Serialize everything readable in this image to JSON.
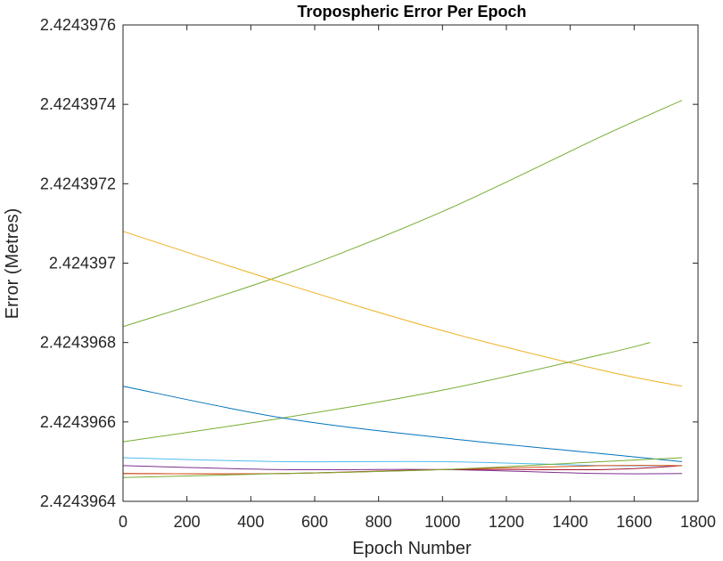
{
  "chart_data": {
    "type": "line",
    "title": "Tropospheric Error Per Epoch",
    "xlabel": "Epoch Number",
    "ylabel": "Error (Metres)",
    "xlim": [
      0,
      1800
    ],
    "ylim": [
      2.4243964,
      2.4243976
    ],
    "xticks": [
      0,
      200,
      400,
      600,
      800,
      1000,
      1200,
      1400,
      1600,
      1800
    ],
    "yticks": [
      2.4243964,
      2.4243966,
      2.4243968,
      2.424397,
      2.4243972,
      2.4243974,
      2.4243976
    ],
    "xtick_labels": [
      "0",
      "200",
      "400",
      "600",
      "800",
      "1000",
      "1200",
      "1400",
      "1600",
      "1800"
    ],
    "ytick_labels": [
      "2.4243964",
      "2.4243966",
      "2.4243968",
      "2.424397",
      "2.4243972",
      "2.4243974",
      "2.4243976"
    ],
    "grid": false,
    "series": [
      {
        "color": "#77ac30",
        "x": [
          0,
          500,
          1000,
          1500,
          1750
        ],
        "y": [
          2.42439684,
          2.42439697,
          2.42439713,
          2.42439732,
          2.42439741
        ]
      },
      {
        "color": "#edb120",
        "x": [
          0,
          500,
          1000,
          1500,
          1750
        ],
        "y": [
          2.42439708,
          2.42439695,
          2.42439683,
          2.42439673,
          2.42439669
        ]
      },
      {
        "color": "#77ac30",
        "x": [
          0,
          500,
          1000,
          1500,
          1650
        ],
        "y": [
          2.42439655,
          2.42439661,
          2.42439668,
          2.42439677,
          2.4243968
        ]
      },
      {
        "color": "#0072bd",
        "x": [
          0,
          500,
          1000,
          1500,
          1750
        ],
        "y": [
          2.42439669,
          2.42439661,
          2.42439656,
          2.42439652,
          2.4243965
        ]
      },
      {
        "color": "#4dbeee",
        "x": [
          0,
          500,
          1000,
          1500,
          1750
        ],
        "y": [
          2.42439651,
          2.4243965,
          2.4243965,
          2.42439649,
          2.42439649
        ]
      },
      {
        "color": "#7e2f8e",
        "x": [
          0,
          500,
          1000,
          1500,
          1750
        ],
        "y": [
          2.42439649,
          2.42439648,
          2.42439648,
          2.42439647,
          2.42439647
        ]
      },
      {
        "color": "#a2142f",
        "x": [
          0,
          500,
          1000,
          1500,
          1750
        ],
        "y": [
          2.42439647,
          2.42439647,
          2.42439648,
          2.42439648,
          2.42439649
        ]
      },
      {
        "color": "#d95319",
        "x": [
          0,
          500,
          1000,
          1500,
          1750
        ],
        "y": [
          2.42439647,
          2.42439647,
          2.42439648,
          2.42439649,
          2.42439649
        ]
      },
      {
        "color": "#77ac30",
        "x": [
          0,
          500,
          1000,
          1500,
          1750
        ],
        "y": [
          2.42439646,
          2.42439647,
          2.42439648,
          2.4243965,
          2.42439651
        ]
      }
    ]
  }
}
